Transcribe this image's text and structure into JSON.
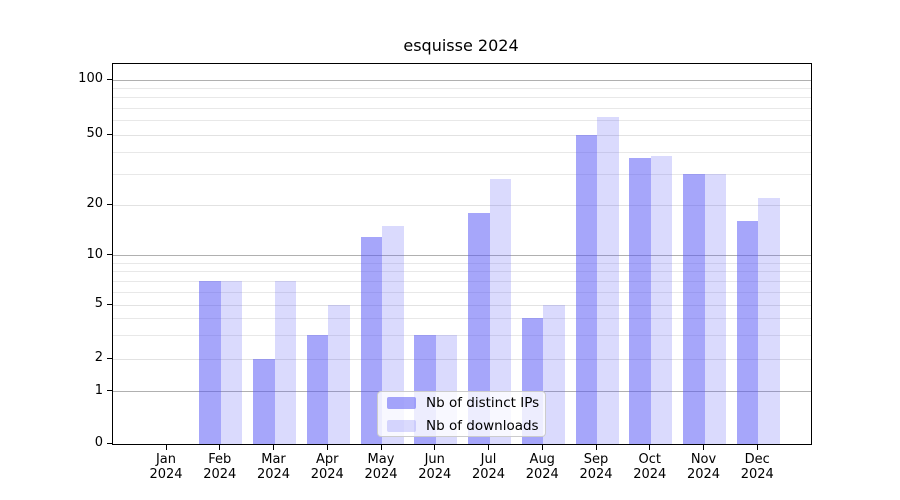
{
  "title": "esquisse 2024",
  "chart_data": {
    "type": "bar",
    "title": "esquisse 2024",
    "categories": [
      "Jan 2024",
      "Feb 2024",
      "Mar 2024",
      "Apr 2024",
      "May 2024",
      "Jun 2024",
      "Jul 2024",
      "Aug 2024",
      "Sep 2024",
      "Oct 2024",
      "Nov 2024",
      "Dec 2024"
    ],
    "series": [
      {
        "name": "Nb of distinct IPs",
        "color": "rgba(85,85,245,0.52)",
        "color_hex": "#a9a9fa",
        "values": [
          0,
          7,
          2,
          3,
          13,
          3,
          18,
          4,
          50,
          37,
          30,
          16
        ]
      },
      {
        "name": "Nb of downloads",
        "color": "rgba(85,85,245,0.22)",
        "color_hex": "#dadaf8",
        "values": [
          0,
          7,
          7,
          5,
          15,
          3,
          28,
          5,
          63,
          38,
          30,
          22
        ]
      }
    ],
    "yticks": [
      0,
      1,
      2,
      5,
      10,
      20,
      50,
      100
    ],
    "minor_yticks": [
      3,
      4,
      6,
      7,
      8,
      9,
      30,
      40,
      60,
      70,
      80,
      90
    ],
    "ylim": [
      0,
      120
    ],
    "yscale": "pseudo-log",
    "xlabel": "",
    "ylabel": "",
    "grid": true,
    "legend_position": "lower center"
  },
  "colors": {
    "grid_major": "#b0b0b0",
    "grid_minor": "#e8e8e8",
    "spine": "#000000",
    "legend_border": "#cccccc",
    "legend_background": "rgba(255,255,255,0.8)"
  }
}
